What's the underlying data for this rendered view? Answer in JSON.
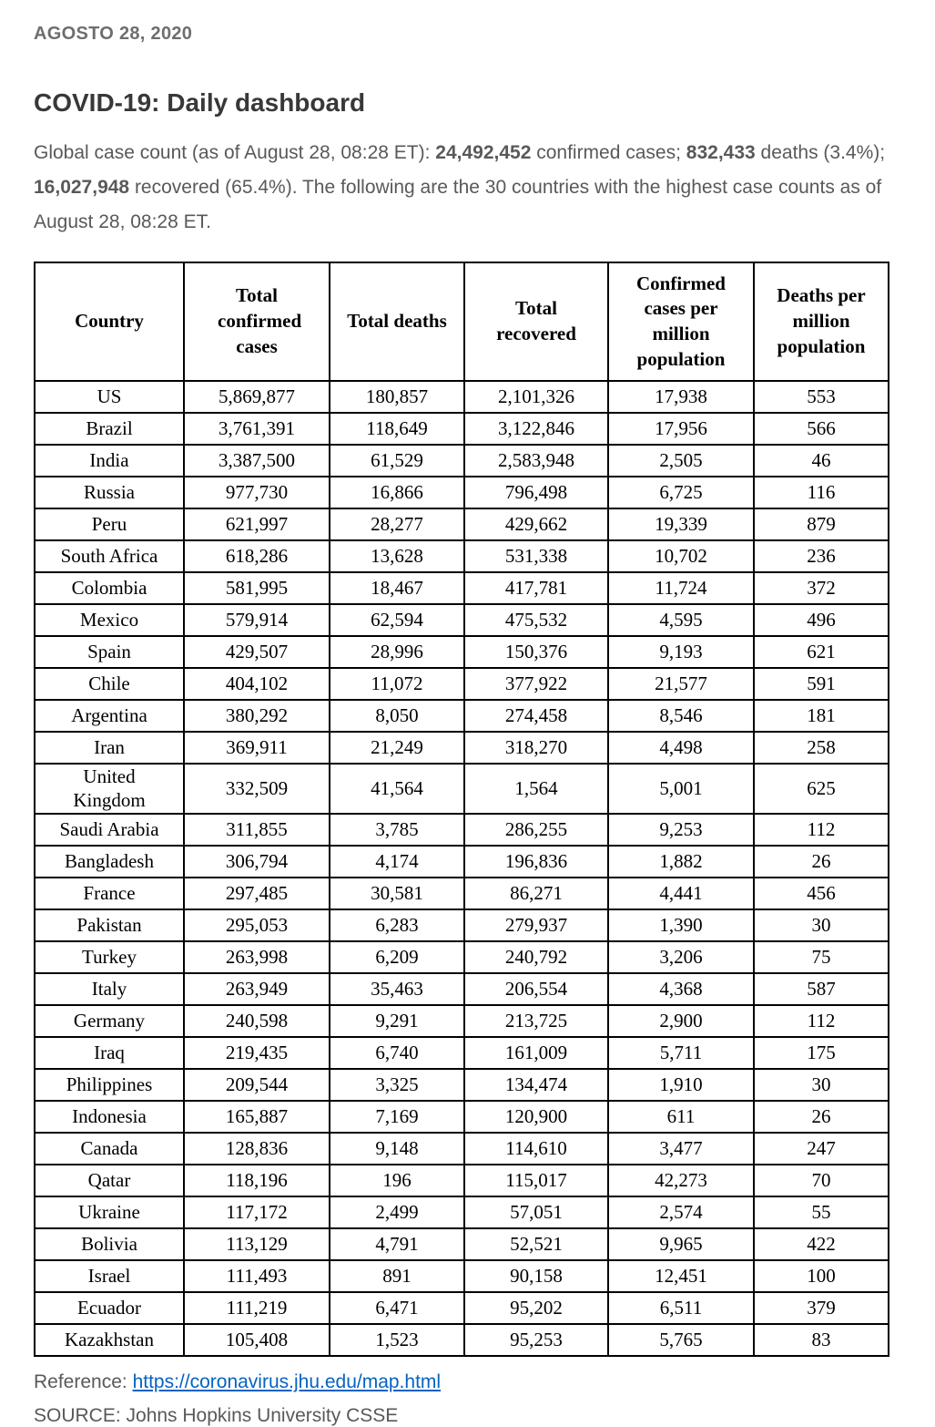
{
  "header": {
    "date": "AGOSTO 28, 2020",
    "title": "COVID-19: Daily dashboard"
  },
  "intro": {
    "segments": [
      {
        "text": "Global case count (as of August 28, 08:28 ET): ",
        "bold": false
      },
      {
        "text": "24,492,452",
        "bold": true
      },
      {
        "text": " confirmed cases; ",
        "bold": false
      },
      {
        "text": "832,433",
        "bold": true
      },
      {
        "text": " deaths (3.4%); ",
        "bold": false
      },
      {
        "text": "16,027,948",
        "bold": true
      },
      {
        "text": " recovered (65.4%). The following are the 30 countries with the highest case counts as of August 28, 08:28 ET.",
        "bold": false
      }
    ]
  },
  "table": {
    "headers": [
      "Country",
      "Total confirmed cases",
      "Total deaths",
      "Total recovered",
      "Confirmed cases per million population",
      "Deaths per million population"
    ],
    "rows": [
      [
        "US",
        "5,869,877",
        "180,857",
        "2,101,326",
        "17,938",
        "553"
      ],
      [
        "Brazil",
        "3,761,391",
        "118,649",
        "3,122,846",
        "17,956",
        "566"
      ],
      [
        "India",
        "3,387,500",
        "61,529",
        "2,583,948",
        "2,505",
        "46"
      ],
      [
        "Russia",
        "977,730",
        "16,866",
        "796,498",
        "6,725",
        "116"
      ],
      [
        "Peru",
        "621,997",
        "28,277",
        "429,662",
        "19,339",
        "879"
      ],
      [
        "South Africa",
        "618,286",
        "13,628",
        "531,338",
        "10,702",
        "236"
      ],
      [
        "Colombia",
        "581,995",
        "18,467",
        "417,781",
        "11,724",
        "372"
      ],
      [
        "Mexico",
        "579,914",
        "62,594",
        "475,532",
        "4,595",
        "496"
      ],
      [
        "Spain",
        "429,507",
        "28,996",
        "150,376",
        "9,193",
        "621"
      ],
      [
        "Chile",
        "404,102",
        "11,072",
        "377,922",
        "21,577",
        "591"
      ],
      [
        "Argentina",
        "380,292",
        "8,050",
        "274,458",
        "8,546",
        "181"
      ],
      [
        "Iran",
        "369,911",
        "21,249",
        "318,270",
        "4,498",
        "258"
      ],
      [
        "United Kingdom",
        "332,509",
        "41,564",
        "1,564",
        "5,001",
        "625"
      ],
      [
        "Saudi Arabia",
        "311,855",
        "3,785",
        "286,255",
        "9,253",
        "112"
      ],
      [
        "Bangladesh",
        "306,794",
        "4,174",
        "196,836",
        "1,882",
        "26"
      ],
      [
        "France",
        "297,485",
        "30,581",
        "86,271",
        "4,441",
        "456"
      ],
      [
        "Pakistan",
        "295,053",
        "6,283",
        "279,937",
        "1,390",
        "30"
      ],
      [
        "Turkey",
        "263,998",
        "6,209",
        "240,792",
        "3,206",
        "75"
      ],
      [
        "Italy",
        "263,949",
        "35,463",
        "206,554",
        "4,368",
        "587"
      ],
      [
        "Germany",
        "240,598",
        "9,291",
        "213,725",
        "2,900",
        "112"
      ],
      [
        "Iraq",
        "219,435",
        "6,740",
        "161,009",
        "5,711",
        "175"
      ],
      [
        "Philippines",
        "209,544",
        "3,325",
        "134,474",
        "1,910",
        "30"
      ],
      [
        "Indonesia",
        "165,887",
        "7,169",
        "120,900",
        "611",
        "26"
      ],
      [
        "Canada",
        "128,836",
        "9,148",
        "114,610",
        "3,477",
        "247"
      ],
      [
        "Qatar",
        "118,196",
        "196",
        "115,017",
        "42,273",
        "70"
      ],
      [
        "Ukraine",
        "117,172",
        "2,499",
        "57,051",
        "2,574",
        "55"
      ],
      [
        "Bolivia",
        "113,129",
        "4,791",
        "52,521",
        "9,965",
        "422"
      ],
      [
        "Israel",
        "111,493",
        "891",
        "90,158",
        "12,451",
        "100"
      ],
      [
        "Ecuador",
        "111,219",
        "6,471",
        "95,202",
        "6,511",
        "379"
      ],
      [
        "Kazakhstan",
        "105,408",
        "1,523",
        "95,253",
        "5,765",
        "83"
      ]
    ]
  },
  "footer": {
    "reference_label": "Reference: ",
    "reference_url": "https://coronavirus.jhu.edu/map.html",
    "source": "SOURCE: Johns Hopkins University CSSE"
  },
  "colors": {
    "link": "#0563c1",
    "body_text": "#595959",
    "date_text": "#6e6e6e",
    "title_text": "#383838",
    "table_border": "#000000"
  }
}
